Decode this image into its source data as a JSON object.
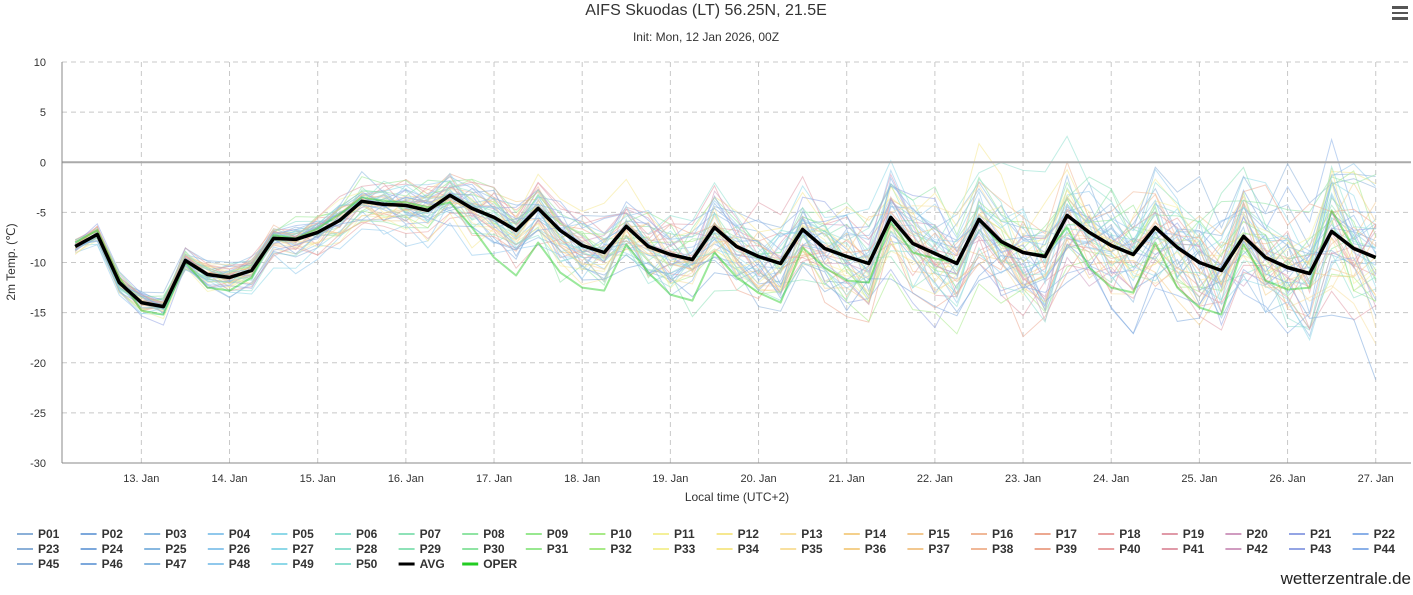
{
  "chart_data": {
    "type": "line",
    "title": "AIFS Skuodas (LT) 56.25N, 21.5E",
    "subtitle": "Init: Mon, 12 Jan 2026, 00Z",
    "xlabel": "Local time (UTC+2)",
    "ylabel": "2m Temp. (℃)",
    "ylim": [
      -30,
      10
    ],
    "yticks": [
      10,
      5,
      0,
      -5,
      -10,
      -15,
      -20,
      -25,
      -30
    ],
    "xlim": [
      12.1,
      27.4
    ],
    "x_ticks": [
      {
        "x": 13,
        "label": "13. Jan"
      },
      {
        "x": 14,
        "label": "14. Jan"
      },
      {
        "x": 15,
        "label": "15. Jan"
      },
      {
        "x": 16,
        "label": "16. Jan"
      },
      {
        "x": 17,
        "label": "17. Jan"
      },
      {
        "x": 18,
        "label": "18. Jan"
      },
      {
        "x": 19,
        "label": "19. Jan"
      },
      {
        "x": 20,
        "label": "20. Jan"
      },
      {
        "x": 21,
        "label": "21. Jan"
      },
      {
        "x": 22,
        "label": "22. Jan"
      },
      {
        "x": 23,
        "label": "23. Jan"
      },
      {
        "x": 24,
        "label": "24. Jan"
      },
      {
        "x": 25,
        "label": "25. Jan"
      },
      {
        "x": 26,
        "label": "26. Jan"
      },
      {
        "x": 27,
        "label": "27. Jan"
      }
    ],
    "grid": true,
    "x_start": 12.25,
    "x_step": 0.25,
    "avg": {
      "name": "AVG",
      "color": "#000000",
      "values": [
        -8.4,
        -7.2,
        -12,
        -14,
        -14.4,
        -9.8,
        -11.2,
        -11.5,
        -10.8,
        -7.6,
        -7.7,
        -7.0,
        -5.8,
        -3.9,
        -4.2,
        -4.3,
        -4.8,
        -3.3,
        -4.6,
        -5.5,
        -6.8,
        -4.6,
        -6.8,
        -8.3,
        -9.0,
        -6.4,
        -8.4,
        -9.2,
        -9.7,
        -6.5,
        -8.4,
        -9.4,
        -10.1,
        -6.7,
        -8.6,
        -9.4,
        -10.1,
        -5.5,
        -8.1,
        -9.1,
        -10.1,
        -5.7,
        -7.9,
        -9.0,
        -9.4,
        -5.3,
        -7.0,
        -8.3,
        -9.2,
        -6.5,
        -8.5,
        -10.0,
        -10.8,
        -7.4,
        -9.5,
        -10.5,
        -11.1,
        -6.9,
        -8.6,
        -9.5
      ]
    },
    "oper": {
      "name": "OPER",
      "color": "#22cc22",
      "values": [
        -8.0,
        -6.8,
        -11.5,
        -14.8,
        -15.2,
        -10.0,
        -12.5,
        -12.8,
        -11.5,
        -7.3,
        -7.6,
        -6.6,
        -5.2,
        -3.5,
        -3.9,
        -4.0,
        -4.5,
        -4.0,
        -6.5,
        -9.5,
        -11.3,
        -8.0,
        -11.0,
        -12.5,
        -12.8,
        -8.2,
        -11.0,
        -13.2,
        -13.8,
        -9.0,
        -11.5,
        -13.0,
        -14.0,
        -8.5,
        -10.5,
        -11.8,
        -12.0,
        -6.0,
        -9.0,
        -9.6,
        -10.0,
        -5.8,
        -8.2,
        -9.0,
        -9.2,
        -6.5,
        -10.5,
        -12.5,
        -13.0,
        -8.0,
        -12.5,
        -14.5,
        -15.2,
        -8.2,
        -11.8,
        -12.7,
        -12.5,
        -4.8,
        -8.5,
        -9.6
      ]
    },
    "member_colors": [
      "#8bb0d8",
      "#7ca8dc",
      "#88b8e0",
      "#90c8ec",
      "#8ed8e8",
      "#8fe0d0",
      "#8ee2b8",
      "#90e4a4",
      "#98e890",
      "#a8ea88",
      "#f4f09a",
      "#f6e890",
      "#f8e0a0",
      "#f4d08c",
      "#f2c890",
      "#f0b898",
      "#eca890",
      "#e8a0a0",
      "#e09aa8",
      "#d09cc0",
      "#94a4e4",
      "#8ab0e8"
    ],
    "series": [
      {
        "name": "P01"
      },
      {
        "name": "P02"
      },
      {
        "name": "P03"
      },
      {
        "name": "P04"
      },
      {
        "name": "P05"
      },
      {
        "name": "P06"
      },
      {
        "name": "P07"
      },
      {
        "name": "P08"
      },
      {
        "name": "P09"
      },
      {
        "name": "P10"
      },
      {
        "name": "P11"
      },
      {
        "name": "P12"
      },
      {
        "name": "P13"
      },
      {
        "name": "P14"
      },
      {
        "name": "P15"
      },
      {
        "name": "P16"
      },
      {
        "name": "P17"
      },
      {
        "name": "P18"
      },
      {
        "name": "P19"
      },
      {
        "name": "P20"
      },
      {
        "name": "P21"
      },
      {
        "name": "P22"
      },
      {
        "name": "P23"
      },
      {
        "name": "P24"
      },
      {
        "name": "P25"
      },
      {
        "name": "P26"
      },
      {
        "name": "P27"
      },
      {
        "name": "P28"
      },
      {
        "name": "P29"
      },
      {
        "name": "P30"
      },
      {
        "name": "P31"
      },
      {
        "name": "P32"
      },
      {
        "name": "P33"
      },
      {
        "name": "P34"
      },
      {
        "name": "P35"
      },
      {
        "name": "P36"
      },
      {
        "name": "P37"
      },
      {
        "name": "P38"
      },
      {
        "name": "P39"
      },
      {
        "name": "P40"
      },
      {
        "name": "P41"
      },
      {
        "name": "P42"
      },
      {
        "name": "P43"
      },
      {
        "name": "P44"
      },
      {
        "name": "P45"
      },
      {
        "name": "P46"
      },
      {
        "name": "P47"
      },
      {
        "name": "P48"
      },
      {
        "name": "P49"
      },
      {
        "name": "P50"
      }
    ],
    "legend_extra": [
      {
        "name": "AVG",
        "color": "#000000"
      },
      {
        "name": "OPER",
        "color": "#22cc22"
      }
    ]
  },
  "branding": "wetterzentrale.de",
  "menu_icon": "hamburger-menu-icon"
}
